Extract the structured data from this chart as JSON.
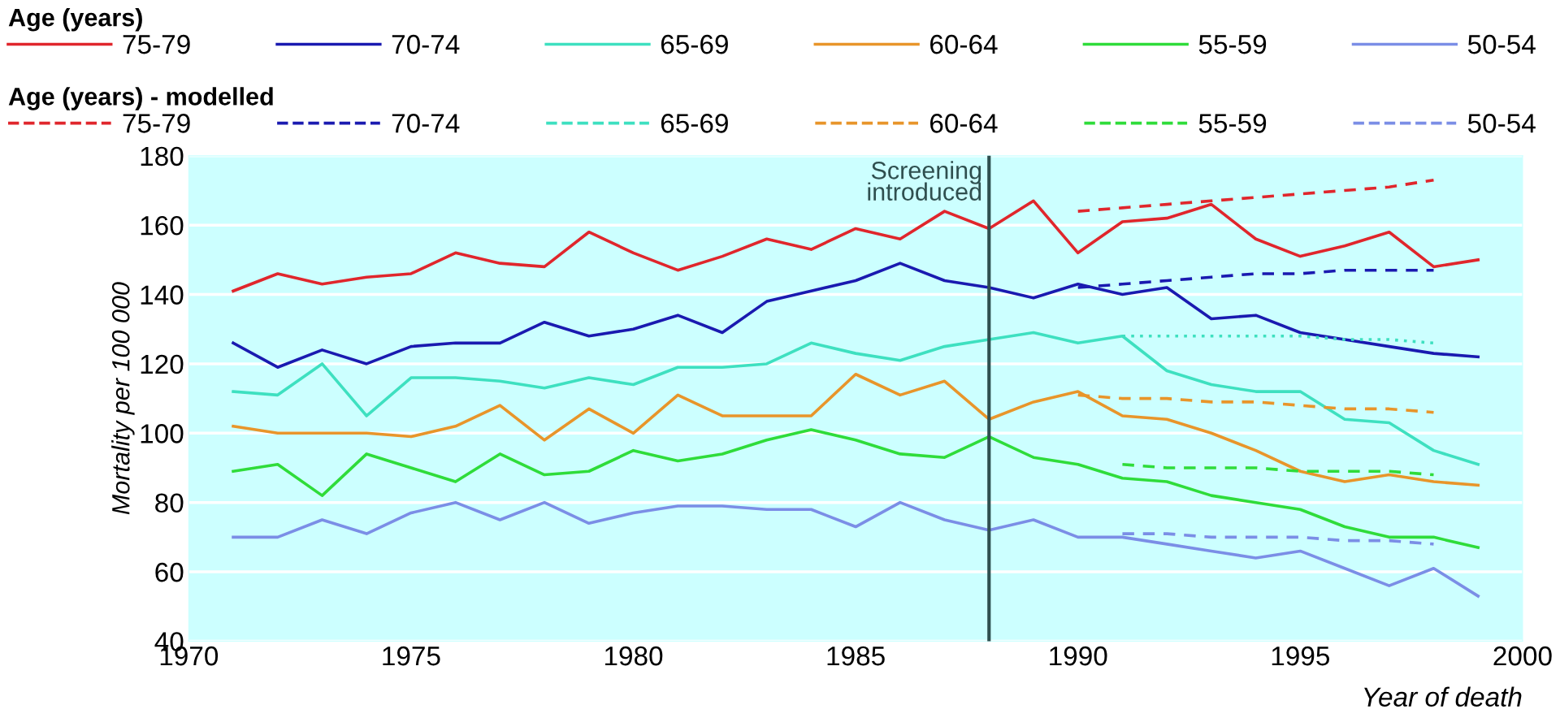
{
  "chart_data": {
    "type": "line",
    "xlabel": "Year of death",
    "ylabel": "Mortality per 100 000",
    "legend_title": "Age (years)",
    "annotations": [
      "Age (years) - modelled"
    ],
    "x": [
      1971,
      1972,
      1973,
      1974,
      1975,
      1976,
      1977,
      1978,
      1979,
      1980,
      1981,
      1982,
      1983,
      1984,
      1985,
      1986,
      1987,
      1988,
      1989,
      1990,
      1991,
      1992,
      1993,
      1994,
      1995,
      1996,
      1997,
      1998,
      1999
    ],
    "series": [
      {
        "name": "75-79",
        "color": "#e0262c",
        "values": [
          141,
          146,
          143,
          145,
          146,
          152,
          149,
          148,
          158,
          152,
          147,
          151,
          156,
          153,
          159,
          156,
          164,
          159,
          167,
          152,
          161,
          162,
          166,
          156,
          151,
          154,
          158,
          148,
          150
        ]
      },
      {
        "name": "70-74",
        "color": "#1a1ab0",
        "values": [
          126,
          119,
          124,
          120,
          125,
          126,
          126,
          132,
          128,
          130,
          134,
          129,
          138,
          141,
          144,
          149,
          144,
          142,
          139,
          143,
          140,
          142,
          133,
          134,
          129,
          127,
          125,
          123,
          122
        ]
      },
      {
        "name": "65-69",
        "color": "#3ee0c0",
        "values": [
          112,
          111,
          120,
          105,
          116,
          116,
          115,
          113,
          116,
          114,
          119,
          119,
          120,
          126,
          123,
          121,
          125,
          127,
          129,
          126,
          128,
          118,
          114,
          112,
          112,
          104,
          103,
          95,
          91
        ]
      },
      {
        "name": "60-64",
        "color": "#e8952a",
        "values": [
          102,
          100,
          100,
          100,
          99,
          102,
          108,
          98,
          107,
          100,
          111,
          105,
          105,
          105,
          117,
          111,
          115,
          104,
          109,
          112,
          105,
          104,
          100,
          95,
          89,
          86,
          88,
          86,
          85
        ]
      },
      {
        "name": "55-59",
        "color": "#2fdc3a",
        "values": [
          89,
          91,
          82,
          94,
          90,
          86,
          94,
          88,
          89,
          95,
          92,
          94,
          98,
          101,
          98,
          94,
          93,
          99,
          93,
          91,
          87,
          86,
          82,
          80,
          78,
          73,
          70,
          70,
          67
        ]
      },
      {
        "name": "50-54",
        "color": "#7b8ee6",
        "values": [
          70,
          70,
          75,
          71,
          77,
          80,
          75,
          80,
          74,
          77,
          79,
          79,
          78,
          78,
          73,
          80,
          75,
          72,
          75,
          70,
          70,
          68,
          66,
          64,
          66,
          61,
          56,
          61,
          53
        ]
      },
      {
        "name": "75-79",
        "color": "#e0262c",
        "line_style": "dashed",
        "x": [
          1990,
          1991,
          1992,
          1993,
          1994,
          1995,
          1996,
          1997,
          1998
        ],
        "values": [
          164,
          165,
          166,
          167,
          168,
          169,
          170,
          171,
          173
        ]
      },
      {
        "name": "70-74",
        "color": "#1a1ab0",
        "line_style": "dashed",
        "x": [
          1990,
          1991,
          1992,
          1993,
          1994,
          1995,
          1996,
          1997,
          1998
        ],
        "values": [
          142,
          143,
          144,
          145,
          146,
          146,
          147,
          147,
          147
        ]
      },
      {
        "name": "65-69",
        "color": "#3ee0c0",
        "line_style": "dotted",
        "x": [
          1991,
          1992,
          1993,
          1994,
          1995,
          1996,
          1997,
          1998
        ],
        "values": [
          128,
          128,
          128,
          128,
          128,
          127,
          127,
          126
        ]
      },
      {
        "name": "60-64",
        "color": "#e8952a",
        "line_style": "dashed",
        "x": [
          1990,
          1991,
          1992,
          1993,
          1994,
          1995,
          1996,
          1997,
          1998
        ],
        "values": [
          111,
          110,
          110,
          109,
          109,
          108,
          107,
          107,
          106
        ]
      },
      {
        "name": "55-59",
        "color": "#2fdc3a",
        "line_style": "dashed",
        "x": [
          1991,
          1992,
          1993,
          1994,
          1995,
          1996,
          1997,
          1998
        ],
        "values": [
          91,
          90,
          90,
          90,
          89,
          89,
          89,
          88
        ]
      },
      {
        "name": "50-54",
        "color": "#7b8ee6",
        "line_style": "dashed",
        "x": [
          1991,
          1992,
          1993,
          1994,
          1995,
          1996,
          1997,
          1998
        ],
        "values": [
          71,
          71,
          70,
          70,
          70,
          69,
          69,
          68
        ]
      }
    ],
    "ref_lines": [
      {
        "axis": "x",
        "value": 1988,
        "label": "Screening introduced",
        "color": "#2f4f4f",
        "line_style": "solid"
      }
    ],
    "xlim": [
      1970,
      2000
    ],
    "xticks": [
      1970,
      1975,
      1980,
      1985,
      1990,
      1995,
      2000
    ],
    "ylim": [
      40,
      180
    ],
    "yticks": [
      40,
      60,
      80,
      100,
      120,
      140,
      160,
      180
    ],
    "grid": "y",
    "legend": "top",
    "marker": "none",
    "line_style": "solid"
  }
}
